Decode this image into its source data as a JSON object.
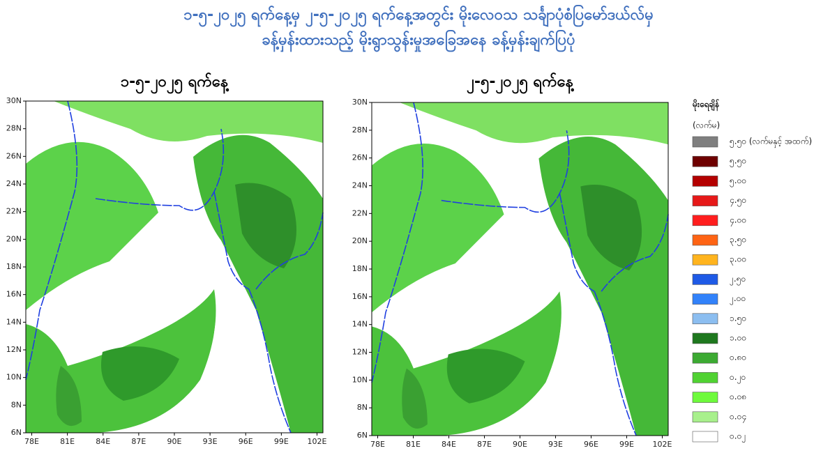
{
  "header": {
    "title_lines": [
      "၁-၅-၂၀၂၅ ရက်နေ့မှ ၂-၅-၂၀၂၅ ရက်နေ့အတွင်း မိုးလေဝသ သင်္ချာပုံစံပြမော်ဒယ်လ်မှ",
      "ခန့်မှန်းထားသည့် မိုးရွာသွန်းမှုအခြေအနေ ခန့်မှန်းချက်ပြပုံ"
    ]
  },
  "maps": [
    {
      "title": "၁-၅-၂၀၂၅ ရက်နေ့",
      "lat_labels": [
        "30N",
        "28N",
        "26N",
        "24N",
        "22N",
        "20N",
        "18N",
        "16N",
        "14N",
        "12N",
        "10N",
        "8N",
        "6N"
      ],
      "lon_labels": [
        "78E",
        "81E",
        "84E",
        "87E",
        "90E",
        "93E",
        "96E",
        "99E",
        "102E"
      ]
    },
    {
      "title": "၂-၅-၂၀၂၅ ရက်နေ့",
      "lat_labels": [
        "30N",
        "28N",
        "26N",
        "24N",
        "22N",
        "20N",
        "18N",
        "16N",
        "14N",
        "12N",
        "10N",
        "8N",
        "6N"
      ],
      "lon_labels": [
        "78E",
        "81E",
        "84E",
        "87E",
        "90E",
        "93E",
        "96E",
        "99E",
        "102E"
      ]
    }
  ],
  "legend": {
    "title": "မိုးရေချိန်",
    "unit": "(လက်မ)",
    "items": [
      {
        "label": "၅.၅၀ (လက်မနှင့် အထက်)",
        "color": "#7f7f7f"
      },
      {
        "label": "၅.၅၀",
        "color": "#6e0000"
      },
      {
        "label": "၅.၀၀",
        "color": "#b40000"
      },
      {
        "label": "၄.၅၀",
        "color": "#e61919"
      },
      {
        "label": "၄.၀၀",
        "color": "#ff1e1e"
      },
      {
        "label": "၃.၅၀",
        "color": "#ff6414"
      },
      {
        "label": "၃.၀၀",
        "color": "#ffb41e"
      },
      {
        "label": "၂.၅၀",
        "color": "#1e5ae6"
      },
      {
        "label": "၂.၀၀",
        "color": "#3282fa"
      },
      {
        "label": "၁.၅၀",
        "color": "#8cbef0"
      },
      {
        "label": "၁.၀၀",
        "color": "#1e781e"
      },
      {
        "label": "၀.၈၀",
        "color": "#3caa32"
      },
      {
        "label": "၀.၂၀",
        "color": "#50d232"
      },
      {
        "label": "၀.၀၈",
        "color": "#6efa3c"
      },
      {
        "label": "၀.၀၄",
        "color": "#a8f08c"
      },
      {
        "label": "၀.၀၂",
        "color": "#ffffff"
      }
    ]
  }
}
